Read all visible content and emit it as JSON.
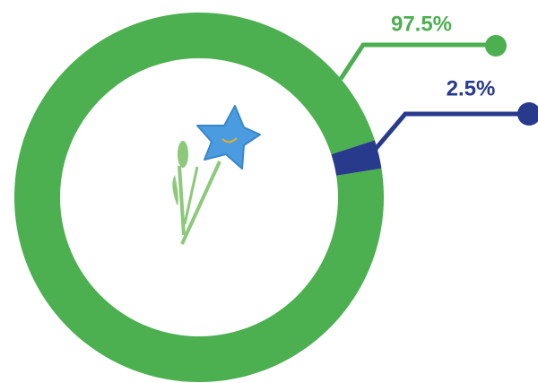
{
  "chart_data": {
    "type": "donut",
    "values": [
      97.5,
      2.5
    ],
    "value_labels": [
      "97.5%",
      "2.5%"
    ],
    "colors": [
      "#4caf50",
      "#283a8c"
    ]
  }
}
